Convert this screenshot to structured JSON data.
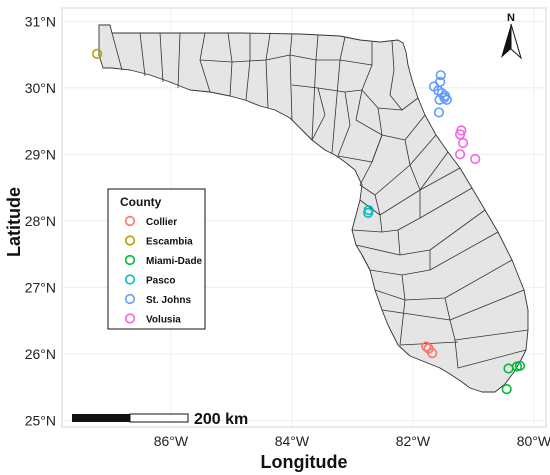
{
  "axes": {
    "xlabel": "Longitude",
    "ylabel": "Latitude",
    "x_ticks": [
      "86°W",
      "84°W",
      "82°W",
      "80°W"
    ],
    "y_ticks": [
      "31°N",
      "30°N",
      "29°N",
      "28°N",
      "27°N",
      "26°N",
      "25°N"
    ]
  },
  "legend": {
    "title": "County",
    "items": [
      {
        "label": "Collier",
        "color": "#f8766d"
      },
      {
        "label": "Escambia",
        "color": "#b79f00"
      },
      {
        "label": "Miami-Dade",
        "color": "#00ba38"
      },
      {
        "label": "Pasco",
        "color": "#00bfc4"
      },
      {
        "label": "St. Johns",
        "color": "#619cff"
      },
      {
        "label": "Volusia",
        "color": "#f564e3"
      }
    ]
  },
  "scale_bar": {
    "label": "200 km"
  },
  "north_arrow": {
    "label": "N"
  },
  "chart_data": {
    "type": "scatter",
    "xlim": [
      -87.8,
      -79.8
    ],
    "ylim": [
      24.9,
      31.2
    ],
    "grid": true,
    "legend_position": "left",
    "series": [
      {
        "name": "Collier",
        "color": "#f8766d",
        "points": [
          [
            -81.78,
            26.11
          ],
          [
            -81.74,
            26.08
          ],
          [
            -81.68,
            26.01
          ]
        ]
      },
      {
        "name": "Escambia",
        "color": "#b79f00",
        "points": [
          [
            -87.22,
            30.51
          ]
        ]
      },
      {
        "name": "Miami-Dade",
        "color": "#00ba38",
        "points": [
          [
            -80.28,
            25.81
          ],
          [
            -80.23,
            25.82
          ],
          [
            -80.42,
            25.78
          ],
          [
            -80.45,
            25.47
          ]
        ]
      },
      {
        "name": "Pasco",
        "color": "#00bfc4",
        "points": [
          [
            -82.73,
            28.16
          ],
          [
            -82.74,
            28.12
          ]
        ]
      },
      {
        "name": "St. Johns",
        "color": "#619cff",
        "points": [
          [
            -81.54,
            30.19
          ],
          [
            -81.55,
            30.09
          ],
          [
            -81.65,
            30.02
          ],
          [
            -81.58,
            29.96
          ],
          [
            -81.52,
            29.92
          ],
          [
            -81.47,
            29.88
          ],
          [
            -81.48,
            29.85
          ],
          [
            -81.56,
            29.82
          ],
          [
            -81.44,
            29.82
          ],
          [
            -81.57,
            29.63
          ]
        ]
      },
      {
        "name": "Volusia",
        "color": "#f564e3",
        "points": [
          [
            -81.2,
            29.36
          ],
          [
            -81.22,
            29.3
          ],
          [
            -81.17,
            29.17
          ],
          [
            -81.22,
            29.0
          ],
          [
            -80.97,
            28.93
          ]
        ]
      }
    ]
  }
}
